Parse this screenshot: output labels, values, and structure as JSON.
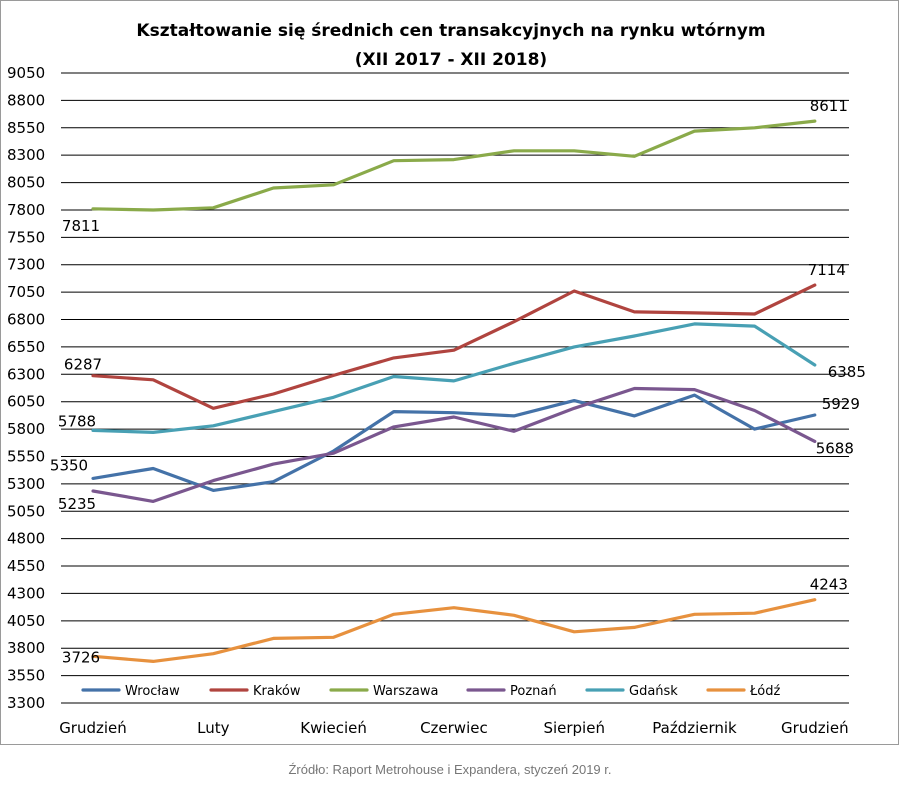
{
  "chart_data": {
    "type": "line",
    "title": [
      "Kształtowanie się średnich cen transakcyjnych na rynku wtórnym",
      "(XII 2017 - XII 2018)"
    ],
    "xlabel": "",
    "ylabel": "",
    "ylim": [
      3300,
      9050
    ],
    "y_ticks": [
      3300,
      3550,
      3800,
      4050,
      4300,
      4550,
      4800,
      5050,
      5300,
      5550,
      5800,
      6050,
      6300,
      6550,
      6800,
      7050,
      7300,
      7550,
      7800,
      8050,
      8300,
      8550,
      8800,
      9050
    ],
    "x_tick_labels": [
      "Grudzień",
      "Luty",
      "Kwiecień",
      "Czerwiec",
      "Sierpień",
      "Październik",
      "Grudzień"
    ],
    "grid": true,
    "legend_position": "bottom",
    "series": [
      {
        "name": "Wrocław",
        "color": "#4472a8",
        "values": [
          5350,
          5440,
          5240,
          5320,
          5600,
          5960,
          5950,
          5920,
          6060,
          5920,
          6110,
          5800,
          5929
        ]
      },
      {
        "name": "Kraków",
        "color": "#b0443f",
        "values": [
          6287,
          6250,
          5990,
          6120,
          6290,
          6450,
          6520,
          6780,
          7060,
          6870,
          6860,
          6850,
          7114
        ]
      },
      {
        "name": "Warszawa",
        "color": "#8aaa4a",
        "values": [
          7811,
          7800,
          7820,
          8000,
          8030,
          8250,
          8260,
          8340,
          8340,
          8290,
          8520,
          8550,
          8611
        ]
      },
      {
        "name": "Poznań",
        "color": "#7a578f",
        "values": [
          5235,
          5140,
          5330,
          5480,
          5580,
          5820,
          5910,
          5780,
          5990,
          6170,
          6160,
          5970,
          5688
        ]
      },
      {
        "name": "Gdańsk",
        "color": "#48a0b4",
        "values": [
          5788,
          5770,
          5830,
          5960,
          6090,
          6280,
          6240,
          6400,
          6550,
          6650,
          6760,
          6740,
          6385
        ]
      },
      {
        "name": "Łódź",
        "color": "#e7913e",
        "values": [
          3726,
          3680,
          3750,
          3890,
          3900,
          4110,
          4170,
          4100,
          3950,
          3990,
          4110,
          4120,
          4243
        ]
      }
    ],
    "data_labels": [
      {
        "series": "Warszawa",
        "point": 0,
        "text": "7811"
      },
      {
        "series": "Warszawa",
        "point": 12,
        "text": "8611"
      },
      {
        "series": "Kraków",
        "point": 0,
        "text": "6287"
      },
      {
        "series": "Kraków",
        "point": 12,
        "text": "7114"
      },
      {
        "series": "Gdańsk",
        "point": 0,
        "text": "5788"
      },
      {
        "series": "Gdańsk",
        "point": 12,
        "text": "6385"
      },
      {
        "series": "Wrocław",
        "point": 0,
        "text": "5350"
      },
      {
        "series": "Wrocław",
        "point": 12,
        "text": "5929"
      },
      {
        "series": "Poznań",
        "point": 0,
        "text": "5235"
      },
      {
        "series": "Poznań",
        "point": 12,
        "text": "5688"
      },
      {
        "series": "Łódź",
        "point": 0,
        "text": "3726"
      },
      {
        "series": "Łódź",
        "point": 12,
        "text": "4243"
      }
    ]
  },
  "source_note": "Źródło: Raport Metrohouse i Expandera, styczeń 2019 r."
}
